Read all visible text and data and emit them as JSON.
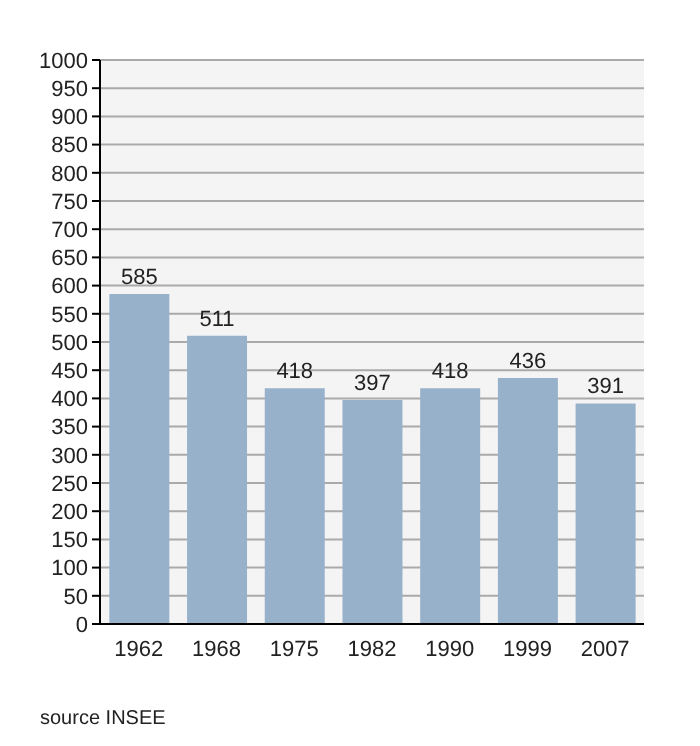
{
  "chart_data": {
    "type": "bar",
    "categories": [
      "1962",
      "1968",
      "1975",
      "1982",
      "1990",
      "1999",
      "2007"
    ],
    "values": [
      585,
      511,
      418,
      397,
      418,
      436,
      391
    ],
    "color": "#98b1cb",
    "ylim": [
      0,
      1000
    ],
    "yticks": [
      0,
      50,
      100,
      150,
      200,
      250,
      300,
      350,
      400,
      450,
      500,
      550,
      600,
      650,
      700,
      750,
      800,
      850,
      900,
      950,
      1000
    ],
    "grid": "y",
    "data_labels": true,
    "annotations": [
      "source INSEE"
    ]
  }
}
